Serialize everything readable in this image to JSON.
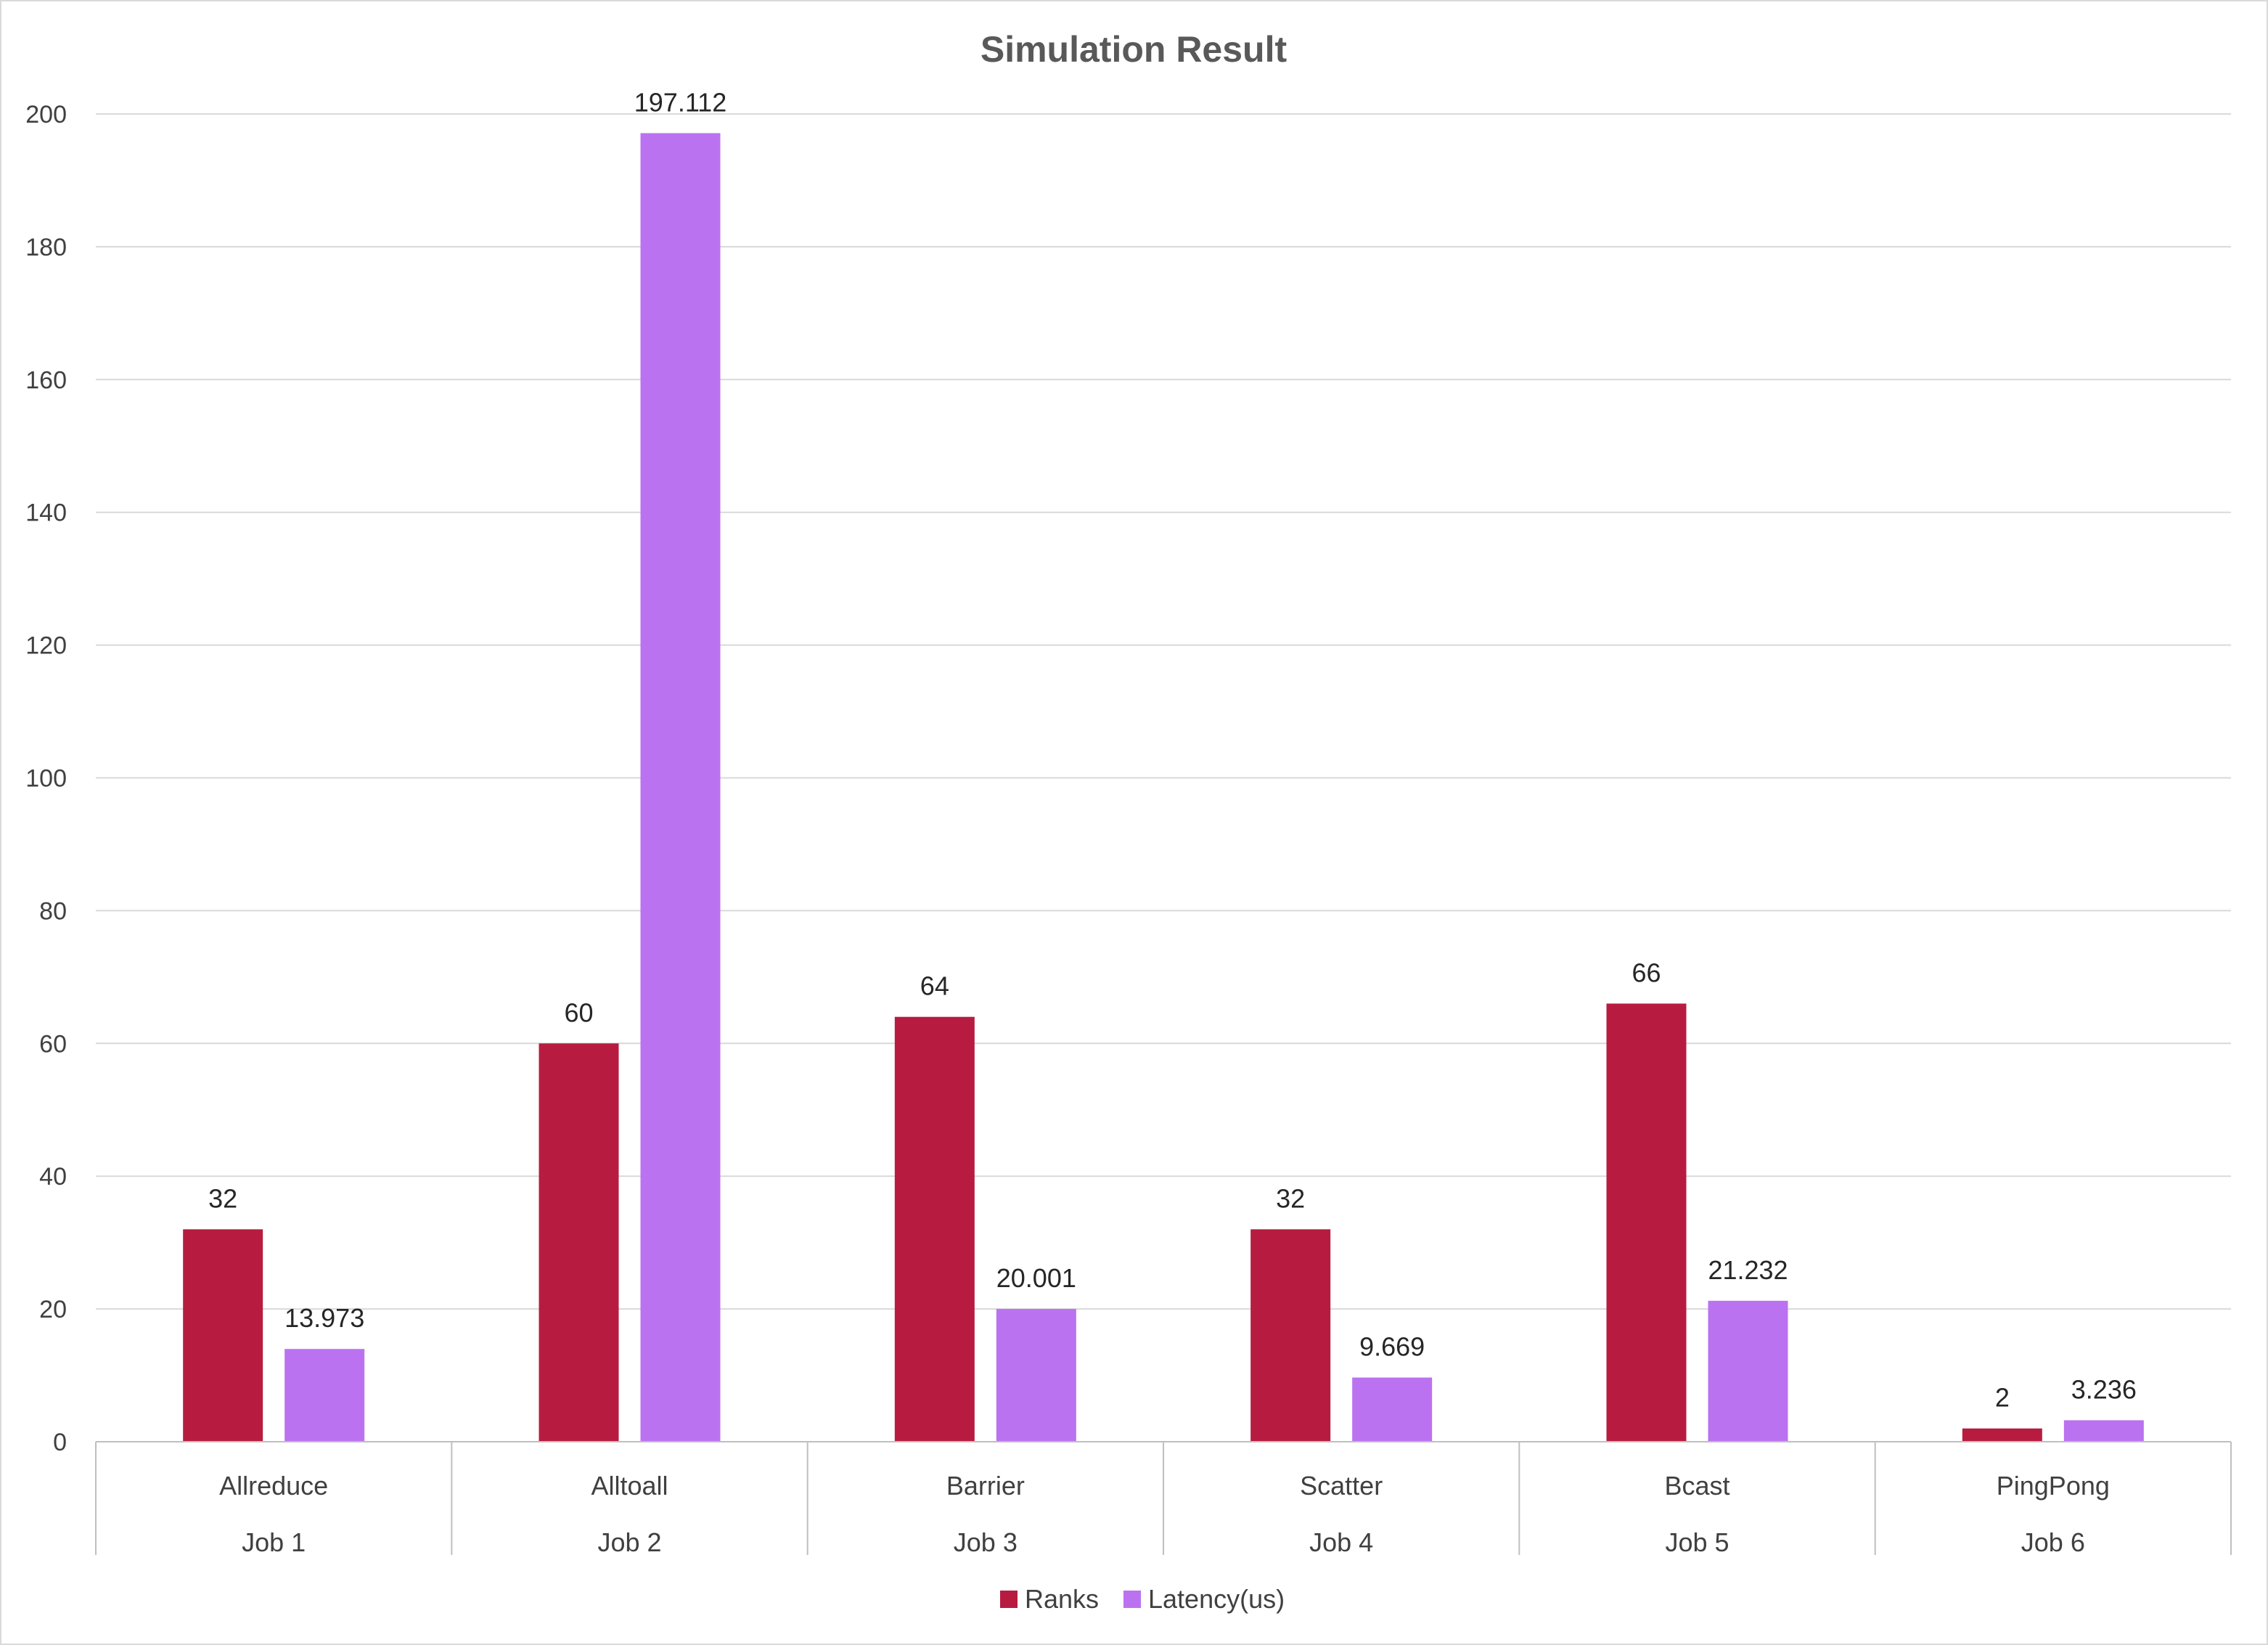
{
  "chart_data": {
    "type": "bar",
    "title": "Simulation Result",
    "xlabel": "",
    "ylabel": "",
    "ylim": [
      0,
      200
    ],
    "yticks": [
      0,
      20,
      40,
      60,
      80,
      100,
      120,
      140,
      160,
      180,
      200
    ],
    "grid": true,
    "legend_position": "bottom",
    "categories": [
      "Allreduce",
      "Alltoall",
      "Barrier",
      "Scatter",
      "Bcast",
      "PingPong"
    ],
    "groups": [
      "Job 1",
      "Job 2",
      "Job 3",
      "Job 4",
      "Job 5",
      "Job 6"
    ],
    "series": [
      {
        "name": "Ranks",
        "color": "#B71C40",
        "values": [
          32,
          60,
          64,
          32,
          66,
          2
        ],
        "labels": [
          "32",
          "60",
          "64",
          "32",
          "66",
          "2"
        ]
      },
      {
        "name": "Latency(us)",
        "color": "#BB72F0",
        "values": [
          13.973,
          197.112,
          20.001,
          9.669,
          21.232,
          3.236
        ],
        "labels": [
          "13.973",
          "197.112",
          "20.001",
          "9.669",
          "21.232",
          "3.236"
        ]
      }
    ]
  }
}
